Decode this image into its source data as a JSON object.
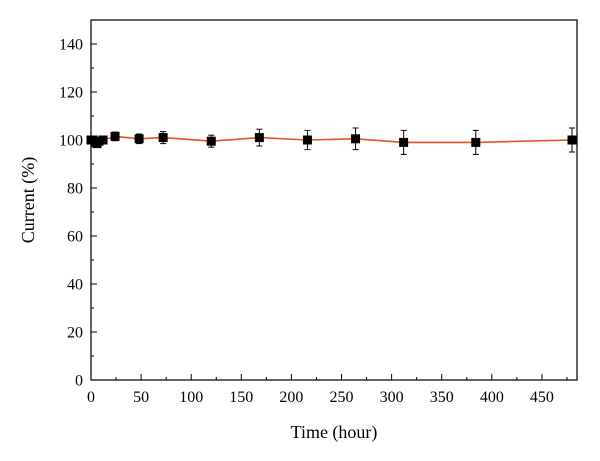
{
  "chart_data": {
    "type": "line",
    "xlabel": "Time (hour)",
    "ylabel": "Current (%)",
    "xlim": [
      0,
      485
    ],
    "ylim": [
      0,
      150
    ],
    "x_ticks": [
      0,
      50,
      100,
      150,
      200,
      250,
      300,
      350,
      400,
      450
    ],
    "y_ticks": [
      0,
      20,
      40,
      60,
      80,
      100,
      120,
      140
    ],
    "x_tick_labels": [
      "0",
      "50",
      "100",
      "150",
      "200",
      "250",
      "300",
      "350",
      "400",
      "450"
    ],
    "y_tick_labels": [
      "0",
      "20",
      "40",
      "60",
      "80",
      "100",
      "120",
      "140"
    ],
    "grid": false,
    "line_color": "#e8502a",
    "marker_color": "#000000",
    "marker": "square",
    "series": [
      {
        "x": [
          0,
          2,
          4,
          6,
          8,
          12,
          24,
          48,
          72,
          120,
          168,
          216,
          264,
          312,
          384,
          480
        ],
        "y": [
          100,
          100,
          99,
          98.5,
          99.5,
          100,
          101.5,
          100.5,
          101,
          99.5,
          101,
          100,
          100.5,
          99,
          99,
          100
        ],
        "error": [
          1.5,
          1.5,
          1.5,
          1.5,
          1.5,
          1.5,
          1.8,
          2,
          2.5,
          2.5,
          3.5,
          4,
          4.5,
          5,
          5,
          5
        ]
      }
    ]
  }
}
